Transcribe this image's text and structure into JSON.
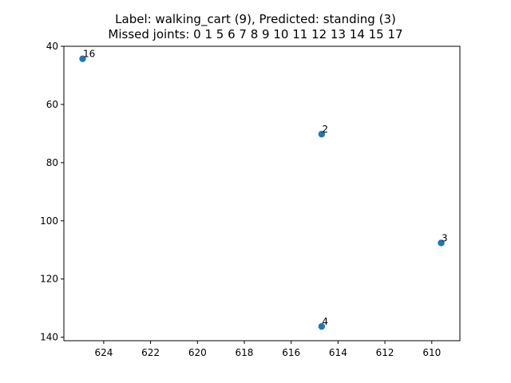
{
  "chart_data": {
    "type": "scatter",
    "title_lines": [
      "Label: walking_cart (9), Predicted: standing (3)",
      "Missed joints: 0 1 5 6 7 8 9 10 11 12 13 14 15 17"
    ],
    "xlabel": "",
    "ylabel": "",
    "xlim": [
      625.7,
      608.8
    ],
    "ylim": [
      40,
      141.2
    ],
    "x_inverted": true,
    "y_inverted": true,
    "xticks": [
      624,
      622,
      620,
      618,
      616,
      614,
      612,
      610
    ],
    "yticks": [
      40,
      60,
      80,
      100,
      120,
      140
    ],
    "grid": false,
    "marker_color": "#1f77b4",
    "series": [
      {
        "points": [
          {
            "label": "16",
            "x": 624.9,
            "y": 44.3
          },
          {
            "label": "2",
            "x": 614.7,
            "y": 70.2
          },
          {
            "label": "3",
            "x": 609.6,
            "y": 107.6
          },
          {
            "label": "4",
            "x": 614.7,
            "y": 136.3
          }
        ]
      }
    ]
  }
}
